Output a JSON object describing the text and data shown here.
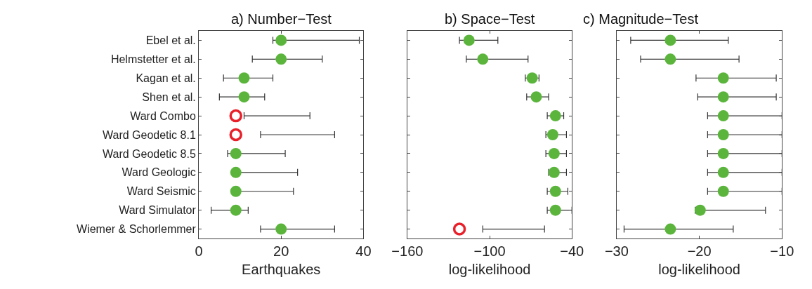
{
  "chart_data": [
    {
      "type": "scatter",
      "orientation": "horizontal",
      "title": "a) Number−Test",
      "xlabel": "Earthquakes",
      "categories": [
        "Ebel et al.",
        "Helmstetter et al.",
        "Kagan et al.",
        "Shen et al.",
        "Ward Combo",
        "Ward Geodetic 8.1",
        "Ward Geodetic 8.5",
        "Ward Geologic",
        "Ward Seismic",
        "Ward Simulator",
        "Wiemer & Schorlemmer"
      ],
      "xlim": [
        0,
        40
      ],
      "xticks": [
        0,
        20,
        40
      ],
      "series": [
        {
          "color": "#5bb53c",
          "marker": "circle",
          "values": [
            20,
            20,
            11,
            11,
            null,
            null,
            9,
            9,
            9,
            9,
            20
          ],
          "errors": [
            [
              18,
              39
            ],
            [
              13,
              30
            ],
            [
              6,
              18
            ],
            [
              5,
              16
            ],
            null,
            null,
            [
              7,
              21
            ],
            [
              9,
              24
            ],
            [
              9,
              23
            ],
            [
              3,
              12
            ],
            [
              15,
              33
            ]
          ]
        },
        {
          "color": "#e8202a",
          "marker": "circle-open",
          "values": [
            null,
            null,
            null,
            null,
            9,
            9,
            null,
            null,
            null,
            null,
            null
          ],
          "errors": [
            null,
            null,
            null,
            null,
            [
              11,
              27
            ],
            [
              15,
              33
            ],
            null,
            null,
            null,
            null,
            null
          ]
        }
      ]
    },
    {
      "type": "scatter",
      "orientation": "horizontal",
      "title": "b) Space−Test",
      "xlabel": "log-likelihood",
      "categories": [
        null,
        null,
        null,
        null,
        null,
        null,
        null,
        null,
        null,
        null,
        null
      ],
      "xlim": [
        -160,
        -40
      ],
      "xticks": [
        -160,
        -100,
        -40
      ],
      "tick_labels": "x",
      "series": [
        {
          "color": "#5bb53c",
          "marker": "circle",
          "values": [
            -115,
            -105,
            -69,
            -66,
            -52,
            -54,
            -53,
            -53,
            -52,
            -52,
            null
          ],
          "errors": [
            [
              -122,
              -94
            ],
            [
              -117,
              -72
            ],
            [
              -74,
              -64
            ],
            [
              -73,
              -57
            ],
            [
              -58,
              -46
            ],
            [
              -59,
              -44
            ],
            [
              -59,
              -44
            ],
            [
              -57,
              -44
            ],
            [
              -58,
              -43
            ],
            [
              -58,
              -40
            ],
            null
          ]
        },
        {
          "color": "#e8202a",
          "marker": "circle-open",
          "values": [
            null,
            null,
            null,
            null,
            null,
            null,
            null,
            null,
            null,
            null,
            -122
          ],
          "errors": [
            null,
            null,
            null,
            null,
            null,
            null,
            null,
            null,
            null,
            null,
            [
              -105,
              -60
            ]
          ]
        }
      ]
    },
    {
      "type": "scatter",
      "orientation": "horizontal",
      "title": "c) Magnitude−Test",
      "xlabel": "log-likelihood",
      "categories": [
        null,
        null,
        null,
        null,
        null,
        null,
        null,
        null,
        null,
        null,
        null
      ],
      "xlim": [
        -30,
        -10
      ],
      "xticks": [
        -30,
        -20,
        -10
      ],
      "tick_labels": "x",
      "series": [
        {
          "color": "#5bb53c",
          "marker": "circle",
          "values": [
            -23.5,
            -23.5,
            -17.1,
            -17.1,
            -17.1,
            -17.1,
            -17.1,
            -17.1,
            -17.1,
            -19.9,
            -23.5
          ],
          "errors": [
            [
              -28.3,
              -16.5
            ],
            [
              -27.1,
              -15.2
            ],
            [
              -20.4,
              -10.7
            ],
            [
              -20.2,
              -10.7
            ],
            [
              -19,
              -10
            ],
            [
              -19,
              -10
            ],
            [
              -19,
              -10
            ],
            [
              -19,
              -10
            ],
            [
              -19,
              -10
            ],
            [
              -20.5,
              -12
            ],
            [
              -29.1,
              -15.9
            ]
          ]
        }
      ]
    }
  ]
}
